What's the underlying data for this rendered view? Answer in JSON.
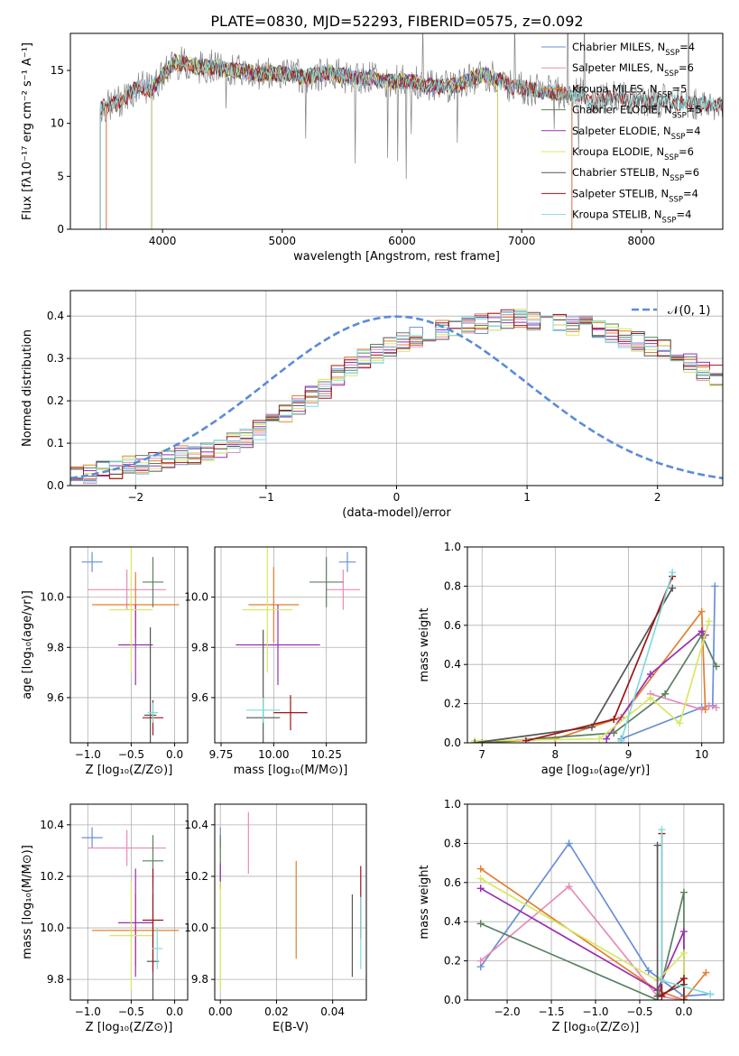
{
  "figure_title": "PLATE=0830, MJD=52293, FIBERID=0575, z=0.092",
  "colors": [
    "#6a8fd6",
    "#e88bb8",
    "#e08030",
    "#5a8060",
    "#9a2fb0",
    "#d8e860",
    "#555555",
    "#a01515",
    "#80dcdc"
  ],
  "chart_data": [
    {
      "id": "spectrum",
      "type": "line",
      "xlabel": "wavelength [Angstrom, rest frame]",
      "ylabel": "Flux [fλ10⁻¹⁷ erg cm⁻² s⁻¹ A⁻¹]",
      "xlim": [
        3230,
        8680
      ],
      "ylim": [
        0,
        18.5
      ],
      "xticks": [
        4000,
        5000,
        6000,
        7000,
        8000
      ],
      "xtick_labels": [
        "4000",
        "5000",
        "6000",
        "7000",
        "8000"
      ],
      "yticks": [
        0,
        5,
        10,
        15
      ],
      "ytick_labels": [
        "0",
        "5",
        "10",
        "15"
      ],
      "grid": false,
      "legend_position": "top-right",
      "data_color": "#808080",
      "model_x": [
        3500,
        3600,
        3700,
        3800,
        3900,
        4000,
        4100,
        4200,
        4300,
        4400,
        4500,
        4600,
        4700,
        4800,
        4900,
        5000,
        5100,
        5200,
        5300,
        5400,
        5500,
        5600,
        5700,
        5800,
        5900,
        6000,
        6100,
        6200,
        6300,
        6400,
        6500,
        6600,
        6700,
        6800,
        6900,
        7000,
        7100,
        7200,
        7300,
        7400,
        7500,
        7600,
        7700,
        7800,
        7900,
        8000,
        8100,
        8200,
        8300,
        8400
      ],
      "model_y": [
        11.5,
        11.8,
        12.6,
        13.5,
        13.2,
        14.5,
        15.8,
        15.6,
        15.3,
        15.4,
        15.1,
        15.0,
        14.9,
        14.7,
        14.8,
        14.7,
        14.6,
        14.4,
        14.6,
        14.8,
        14.5,
        14.2,
        14.4,
        14.1,
        13.9,
        14.0,
        13.9,
        13.6,
        13.5,
        13.5,
        13.7,
        14.3,
        14.6,
        14.1,
        13.6,
        13.4,
        13.2,
        13.0,
        12.9,
        12.7,
        12.8,
        11.7,
        12.4,
        12.6,
        12.2,
        12.1,
        12.0,
        12.2,
        12.0,
        11.8
      ],
      "series": [
        {
          "name": "Chabrier MILES, N",
          "sub": "SSP",
          "suffix": "=4",
          "start": 3530,
          "end": 7420
        },
        {
          "name": "Salpeter MILES, N",
          "sub": "SSP",
          "suffix": "=6",
          "start": 3530,
          "end": 7420
        },
        {
          "name": "Kroupa MILES, N",
          "sub": "SSP",
          "suffix": "=5",
          "start": 3530,
          "end": 7420
        },
        {
          "name": "Chabrier ELODIE, N",
          "sub": "SSP",
          "suffix": "=5",
          "start": 3910,
          "end": 6800
        },
        {
          "name": "Salpeter ELODIE, N",
          "sub": "SSP",
          "suffix": "=4",
          "start": 3910,
          "end": 6800
        },
        {
          "name": "Kroupa ELODIE, N",
          "sub": "SSP",
          "suffix": "=6",
          "start": 3910,
          "end": 6800
        },
        {
          "name": "Chabrier STELIB, N",
          "sub": "SSP",
          "suffix": "=6",
          "start": 3480,
          "end": 8680
        },
        {
          "name": "Salpeter STELIB, N",
          "sub": "SSP",
          "suffix": "=4",
          "start": 3480,
          "end": 8680
        },
        {
          "name": "Kroupa STELIB, N",
          "sub": "SSP",
          "suffix": "=4",
          "start": 3480,
          "end": 8680
        }
      ]
    },
    {
      "id": "residuals",
      "type": "histogram",
      "xlabel": "(data-model)/error",
      "ylabel": "Normed distribution",
      "xlim": [
        -2.5,
        2.5
      ],
      "ylim": [
        0,
        0.46
      ],
      "xticks": [
        -2,
        -1,
        0,
        1,
        2
      ],
      "xtick_labels": [
        "−2",
        "−1",
        "0",
        "1",
        "2"
      ],
      "yticks": [
        0,
        0.1,
        0.2,
        0.3,
        0.4
      ],
      "ytick_labels": [
        "0.0",
        "0.1",
        "0.2",
        "0.3",
        "0.4"
      ],
      "grid": true,
      "legend_position": "top-right",
      "legend_label": "𝒩(0, 1)",
      "gaussian_color": "#5b8bd8",
      "bins_start": -2.5,
      "bin_width": 0.1,
      "base_values": [
        0.025,
        0.03,
        0.035,
        0.04,
        0.045,
        0.05,
        0.055,
        0.06,
        0.07,
        0.075,
        0.08,
        0.09,
        0.1,
        0.11,
        0.13,
        0.15,
        0.17,
        0.19,
        0.21,
        0.23,
        0.26,
        0.28,
        0.3,
        0.31,
        0.33,
        0.34,
        0.35,
        0.36,
        0.37,
        0.37,
        0.38,
        0.38,
        0.385,
        0.39,
        0.395,
        0.39,
        0.395,
        0.39,
        0.38,
        0.38,
        0.37,
        0.36,
        0.35,
        0.34,
        0.33,
        0.32,
        0.31,
        0.29,
        0.27,
        0.26,
        0.23,
        0.21,
        0.19,
        0.17,
        0.15,
        0.13,
        0.11,
        0.1,
        0.09,
        0.08,
        0.07,
        0.065,
        0.06,
        0.05,
        0.045,
        0.04,
        0.035,
        0.03,
        0.03,
        0.025
      ]
    },
    {
      "id": "age-vs-z",
      "type": "errorbar",
      "xlabel": "Z [log₁₀(Z/Z⊙)]",
      "ylabel": "age  [log₁₀(age/yr)]",
      "xlim": [
        -1.2,
        0.15
      ],
      "ylim": [
        9.42,
        10.2
      ],
      "xticks": [
        -1.0,
        -0.5,
        0.0
      ],
      "xtick_labels": [
        "−1.0",
        "−0.5",
        "0.0"
      ],
      "yticks": [
        9.6,
        9.8,
        10.0
      ],
      "ytick_labels": [
        "9.6",
        "9.8",
        "10.0"
      ],
      "grid": true,
      "points": [
        {
          "x": -0.95,
          "y": 10.14,
          "xerr": 0.12,
          "yerr": 0.04
        },
        {
          "x": -0.55,
          "y": 10.03,
          "xerr": 0.45,
          "yerr": 0.08
        },
        {
          "x": -0.45,
          "y": 9.97,
          "xerr": 0.5,
          "yerr": 0.13
        },
        {
          "x": -0.25,
          "y": 10.06,
          "xerr": 0.12,
          "yerr": 0.1
        },
        {
          "x": -0.45,
          "y": 9.81,
          "xerr": 0.2,
          "yerr": 0.16
        },
        {
          "x": -0.5,
          "y": 9.95,
          "xerr": 0.25,
          "yerr": 0.25
        },
        {
          "x": -0.28,
          "y": 9.53,
          "xerr": 0.07,
          "yerr": 0.35
        },
        {
          "x": -0.25,
          "y": 9.52,
          "xerr": 0.12,
          "yerr": 0.07
        },
        {
          "x": -0.25,
          "y": 9.54,
          "xerr": 0.06,
          "yerr": 0.04
        }
      ]
    },
    {
      "id": "age-vs-mass",
      "type": "errorbar",
      "xlabel": "mass [log₁₀(M/M⊙)]",
      "ylabel": "",
      "xlim": [
        9.72,
        10.44
      ],
      "ylim": [
        9.42,
        10.2
      ],
      "xticks": [
        9.75,
        10.0,
        10.25
      ],
      "xtick_labels": [
        "9.75",
        "10.00",
        "10.25"
      ],
      "yticks": [
        9.6,
        9.8,
        10.0
      ],
      "ytick_labels": [
        "9.6",
        "9.8",
        "10.0"
      ],
      "grid": true,
      "points": [
        {
          "x": 10.35,
          "y": 10.14,
          "xerr": 0.04,
          "yerr": 0.04
        },
        {
          "x": 10.33,
          "y": 10.03,
          "xerr": 0.08,
          "yerr": 0.08
        },
        {
          "x": 10.0,
          "y": 9.97,
          "xerr": 0.12,
          "yerr": 0.15
        },
        {
          "x": 10.25,
          "y": 10.06,
          "xerr": 0.08,
          "yerr": 0.1
        },
        {
          "x": 10.02,
          "y": 9.81,
          "xerr": 0.2,
          "yerr": 0.16
        },
        {
          "x": 9.97,
          "y": 9.95,
          "xerr": 0.12,
          "yerr": 0.25
        },
        {
          "x": 9.95,
          "y": 9.52,
          "xerr": 0.08,
          "yerr": 0.35
        },
        {
          "x": 10.08,
          "y": 9.54,
          "xerr": 0.08,
          "yerr": 0.07
        },
        {
          "x": 9.95,
          "y": 9.55,
          "xerr": 0.08,
          "yerr": 0.05
        }
      ]
    },
    {
      "id": "mass-weight-vs-age",
      "type": "line",
      "xlabel": "age  [log₁₀(age/yr)]",
      "ylabel": "mass weight",
      "xlim": [
        6.8,
        10.3
      ],
      "ylim": [
        0,
        1
      ],
      "xticks": [
        7,
        8,
        9,
        10
      ],
      "xtick_labels": [
        "7",
        "8",
        "9",
        "10"
      ],
      "yticks": [
        0,
        0.2,
        0.4,
        0.6,
        0.8,
        1.0
      ],
      "ytick_labels": [
        "0.0",
        "0.2",
        "0.4",
        "0.6",
        "0.8",
        "1.0"
      ],
      "grid": true,
      "series": [
        {
          "x": [
            8.9,
            10.0,
            10.15,
            10.18
          ],
          "y": [
            0.02,
            0.18,
            0.19,
            0.8
          ]
        },
        {
          "x": [
            9.3,
            10.0,
            10.1,
            10.2
          ],
          "y": [
            0.25,
            0.17,
            0.19,
            0.18
          ]
        },
        {
          "x": [
            7.0,
            8.0,
            8.9,
            10.0,
            10.05
          ],
          "y": [
            0.0,
            0.02,
            0.13,
            0.67,
            0.17
          ]
        },
        {
          "x": [
            7.0,
            8.8,
            9.5,
            10.0,
            10.2
          ],
          "y": [
            0.0,
            0.05,
            0.25,
            0.55,
            0.39
          ]
        },
        {
          "x": [
            8.7,
            9.3,
            10.0,
            10.05
          ],
          "y": [
            0.02,
            0.35,
            0.57,
            0.55
          ]
        },
        {
          "x": [
            6.9,
            8.6,
            9.3,
            9.7,
            10.1
          ],
          "y": [
            0.01,
            0.02,
            0.23,
            0.1,
            0.62
          ]
        },
        {
          "x": [
            6.9,
            8.5,
            9.6
          ],
          "y": [
            0.0,
            0.08,
            0.79
          ]
        },
        {
          "x": [
            7.6,
            8.8,
            9.6
          ],
          "y": [
            0.01,
            0.12,
            0.85
          ]
        },
        {
          "x": [
            8.9,
            9.6
          ],
          "y": [
            0.01,
            0.87
          ]
        }
      ]
    },
    {
      "id": "mass-vs-z",
      "type": "errorbar",
      "xlabel": "Z [log₁₀(Z/Z⊙)]",
      "ylabel": "mass [log₁₀(M/M⊙)]",
      "xlim": [
        -1.2,
        0.15
      ],
      "ylim": [
        9.72,
        10.48
      ],
      "xticks": [
        -1.0,
        -0.5,
        0.0
      ],
      "xtick_labels": [
        "−1.0",
        "−0.5",
        "0.0"
      ],
      "yticks": [
        9.8,
        10.0,
        10.2,
        10.4
      ],
      "ytick_labels": [
        "9.8",
        "10.0",
        "10.2",
        "10.4"
      ],
      "grid": true,
      "points": [
        {
          "x": -0.95,
          "y": 10.35,
          "xerr": 0.12,
          "yerr": 0.04
        },
        {
          "x": -0.55,
          "y": 10.31,
          "xerr": 0.45,
          "yerr": 0.07
        },
        {
          "x": -0.45,
          "y": 9.99,
          "xerr": 0.5,
          "yerr": 0.14
        },
        {
          "x": -0.25,
          "y": 10.26,
          "xerr": 0.12,
          "yerr": 0.1
        },
        {
          "x": -0.45,
          "y": 10.02,
          "xerr": 0.2,
          "yerr": 0.21
        },
        {
          "x": -0.5,
          "y": 9.97,
          "xerr": 0.25,
          "yerr": 0.21
        },
        {
          "x": -0.25,
          "y": 9.87,
          "xerr": 0.07,
          "yerr": 0.26
        },
        {
          "x": -0.25,
          "y": 10.03,
          "xerr": 0.12,
          "yerr": 0.2
        },
        {
          "x": -0.2,
          "y": 9.92,
          "xerr": 0.06,
          "yerr": 0.08
        }
      ]
    },
    {
      "id": "mass-vs-ebv",
      "type": "errorbar",
      "xlabel": "E(B-V)",
      "ylabel": "",
      "xlim": [
        -0.002,
        0.052
      ],
      "ylim": [
        9.72,
        10.48
      ],
      "xticks": [
        0.0,
        0.02,
        0.04
      ],
      "xtick_labels": [
        "0.00",
        "0.02",
        "0.04"
      ],
      "yticks": [
        9.8,
        10.0,
        10.2,
        10.4
      ],
      "ytick_labels": [
        "9.8",
        "10.0",
        "10.2",
        "10.4"
      ],
      "grid": true,
      "points": [
        {
          "x": 0.0,
          "y": 10.35,
          "xerr": 0,
          "yerr": 0.04
        },
        {
          "x": 0.01,
          "y": 10.33,
          "xerr": 0,
          "yerr": 0.12
        },
        {
          "x": 0.027,
          "y": 10.07,
          "xerr": 0,
          "yerr": 0.19
        },
        {
          "x": 0.0,
          "y": 10.26,
          "xerr": 0,
          "yerr": 0.1
        },
        {
          "x": 0.0,
          "y": 10.2,
          "xerr": 0,
          "yerr": 0.05
        },
        {
          "x": 0.0,
          "y": 9.97,
          "xerr": 0,
          "yerr": 0.21
        },
        {
          "x": 0.047,
          "y": 9.97,
          "xerr": 0,
          "yerr": 0.16
        },
        {
          "x": 0.05,
          "y": 10.1,
          "xerr": 0,
          "yerr": 0.14
        },
        {
          "x": 0.05,
          "y": 9.98,
          "xerr": 0,
          "yerr": 0.14
        }
      ]
    },
    {
      "id": "mass-weight-vs-z",
      "type": "line",
      "xlabel": "Z [log₁₀(Z/Z⊙)]",
      "ylabel": "mass weight",
      "xlim": [
        -2.45,
        0.45
      ],
      "ylim": [
        0,
        1
      ],
      "xticks": [
        -2.0,
        -1.5,
        -1.0,
        -0.5,
        0.0
      ],
      "xtick_labels": [
        "−2.0",
        "−1.5",
        "−1.0",
        "−0.5",
        "0.0"
      ],
      "yticks": [
        0,
        0.2,
        0.4,
        0.6,
        0.8,
        1.0
      ],
      "ytick_labels": [
        "0.0",
        "0.2",
        "0.4",
        "0.6",
        "0.8",
        "1.0"
      ],
      "grid": true,
      "series": [
        {
          "x": [
            -2.3,
            -1.3,
            -0.4,
            0.0,
            0.3
          ],
          "y": [
            0.17,
            0.8,
            0.15,
            0.02,
            0.03
          ]
        },
        {
          "x": [
            -2.3,
            -1.3,
            -0.3,
            0.0
          ],
          "y": [
            0.2,
            0.58,
            0.02,
            0.0
          ]
        },
        {
          "x": [
            -2.3,
            -0.3,
            0.0,
            0.25
          ],
          "y": [
            0.67,
            0.05,
            0.0,
            0.14
          ]
        },
        {
          "x": [
            -2.3,
            -0.3,
            0.0,
            0.0
          ],
          "y": [
            0.39,
            0.0,
            0.55,
            0.0
          ]
        },
        {
          "x": [
            -2.3,
            -0.3,
            0.0,
            0.0
          ],
          "y": [
            0.57,
            0.05,
            0.35,
            0.0
          ]
        },
        {
          "x": [
            -2.3,
            -0.3,
            0.0,
            0.0
          ],
          "y": [
            0.62,
            0.1,
            0.24,
            0.0
          ]
        },
        {
          "x": [
            -0.3,
            -0.3,
            0.0
          ],
          "y": [
            0.79,
            0.02,
            0.08
          ]
        },
        {
          "x": [
            -0.25,
            -0.25,
            0.0,
            0.0
          ],
          "y": [
            0.85,
            0.02,
            0.11,
            0.0
          ]
        },
        {
          "x": [
            -0.25,
            -0.25,
            0.3
          ],
          "y": [
            0.87,
            0.1,
            0.03
          ]
        }
      ]
    }
  ]
}
